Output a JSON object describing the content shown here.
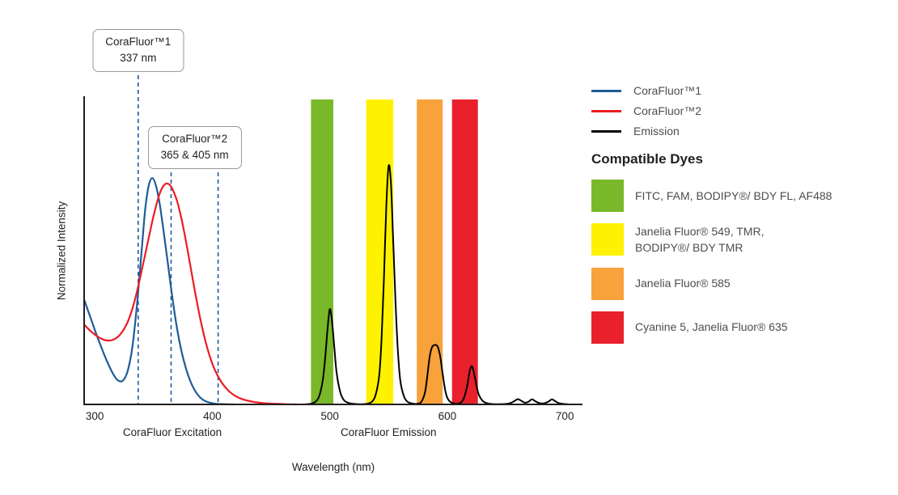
{
  "chart_data": {
    "type": "line",
    "title": "",
    "xlabel": "Wavelength (nm)",
    "ylabel": "Normalized Intensity",
    "xlim": [
      291,
      715
    ],
    "ylim": [
      0,
      1.28
    ],
    "x_ticks": [
      300,
      400,
      500,
      600,
      700
    ],
    "grid": false,
    "axis_group_labels": [
      {
        "text": "CoraFluor Excitation",
        "center_nm": 366
      },
      {
        "text": "CoraFluor Emission",
        "center_nm": 550
      }
    ],
    "annotations": [
      {
        "key": "corafluor1",
        "title": "CoraFluor™1",
        "value": "337 nm",
        "lines_nm": [
          337
        ]
      },
      {
        "key": "corafluor2",
        "title": "CoraFluor™2",
        "value": "365 & 405 nm",
        "lines_nm": [
          365,
          405
        ]
      }
    ],
    "dashed_line_color": "#1e5c97",
    "axis_color": "#231f20",
    "bands": [
      {
        "dye_key": "green",
        "color": "#79b829",
        "from_nm": 484,
        "to_nm": 503
      },
      {
        "dye_key": "yellow",
        "color": "#fff200",
        "from_nm": 531,
        "to_nm": 554
      },
      {
        "dye_key": "orange",
        "color": "#f7a23b",
        "from_nm": 574,
        "to_nm": 596
      },
      {
        "dye_key": "red",
        "color": "#e8212d",
        "from_nm": 604,
        "to_nm": 626
      }
    ],
    "series": [
      {
        "key": "corafluor1-excitation",
        "name": "CoraFluor™1",
        "color": "#1e5c97",
        "width": 2.2,
        "points": [
          [
            291,
            0.44
          ],
          [
            296,
            0.37
          ],
          [
            301,
            0.3
          ],
          [
            306,
            0.235
          ],
          [
            311,
            0.175
          ],
          [
            316,
            0.125
          ],
          [
            320,
            0.1
          ],
          [
            324,
            0.1
          ],
          [
            328,
            0.14
          ],
          [
            332,
            0.24
          ],
          [
            336,
            0.42
          ],
          [
            340,
            0.65
          ],
          [
            343,
            0.82
          ],
          [
            346,
            0.92
          ],
          [
            349,
            0.95
          ],
          [
            352,
            0.92
          ],
          [
            355,
            0.85
          ],
          [
            358,
            0.75
          ],
          [
            362,
            0.6
          ],
          [
            366,
            0.45
          ],
          [
            370,
            0.32
          ],
          [
            374,
            0.22
          ],
          [
            378,
            0.145
          ],
          [
            382,
            0.09
          ],
          [
            386,
            0.052
          ],
          [
            390,
            0.028
          ],
          [
            394,
            0.014
          ],
          [
            399,
            0.006
          ],
          [
            404,
            0.002
          ],
          [
            410,
            0.001
          ],
          [
            418,
            0
          ]
        ]
      },
      {
        "key": "corafluor2-excitation",
        "name": "CoraFluor™2",
        "color": "#ed1c24",
        "width": 2.2,
        "points": [
          [
            291,
            0.335
          ],
          [
            296,
            0.31
          ],
          [
            301,
            0.29
          ],
          [
            306,
            0.275
          ],
          [
            311,
            0.268
          ],
          [
            316,
            0.272
          ],
          [
            321,
            0.29
          ],
          [
            326,
            0.325
          ],
          [
            331,
            0.385
          ],
          [
            336,
            0.475
          ],
          [
            341,
            0.585
          ],
          [
            346,
            0.7
          ],
          [
            350,
            0.79
          ],
          [
            354,
            0.865
          ],
          [
            357,
            0.905
          ],
          [
            360,
            0.925
          ],
          [
            363,
            0.925
          ],
          [
            366,
            0.905
          ],
          [
            370,
            0.855
          ],
          [
            374,
            0.775
          ],
          [
            378,
            0.675
          ],
          [
            382,
            0.565
          ],
          [
            386,
            0.455
          ],
          [
            390,
            0.355
          ],
          [
            394,
            0.27
          ],
          [
            398,
            0.2
          ],
          [
            402,
            0.147
          ],
          [
            407,
            0.1
          ],
          [
            412,
            0.067
          ],
          [
            417,
            0.044
          ],
          [
            423,
            0.027
          ],
          [
            429,
            0.017
          ],
          [
            436,
            0.01
          ],
          [
            444,
            0.005
          ],
          [
            452,
            0.003
          ],
          [
            462,
            0.001
          ],
          [
            472,
            0
          ]
        ]
      },
      {
        "key": "emission",
        "name": "Emission",
        "color": "#000000",
        "width": 2,
        "points": [
          [
            462,
            0
          ],
          [
            478,
            0
          ],
          [
            484,
            0.003
          ],
          [
            488,
            0.012
          ],
          [
            491,
            0.035
          ],
          [
            494,
            0.1
          ],
          [
            496,
            0.19
          ],
          [
            498,
            0.31
          ],
          [
            500,
            0.4
          ],
          [
            502,
            0.345
          ],
          [
            504,
            0.23
          ],
          [
            506,
            0.125
          ],
          [
            509,
            0.05
          ],
          [
            512,
            0.018
          ],
          [
            516,
            0.006
          ],
          [
            521,
            0.002
          ],
          [
            527,
            0.001
          ],
          [
            532,
            0.003
          ],
          [
            536,
            0.012
          ],
          [
            539,
            0.04
          ],
          [
            542,
            0.12
          ],
          [
            544,
            0.27
          ],
          [
            546,
            0.52
          ],
          [
            548,
            0.82
          ],
          [
            550,
            1.0
          ],
          [
            552,
            0.93
          ],
          [
            554,
            0.68
          ],
          [
            556,
            0.42
          ],
          [
            558,
            0.22
          ],
          [
            560,
            0.1
          ],
          [
            563,
            0.035
          ],
          [
            566,
            0.012
          ],
          [
            570,
            0.004
          ],
          [
            575,
            0.003
          ],
          [
            578,
            0.012
          ],
          [
            581,
            0.05
          ],
          [
            583,
            0.12
          ],
          [
            585,
            0.2
          ],
          [
            587,
            0.24
          ],
          [
            590,
            0.25
          ],
          [
            592,
            0.24
          ],
          [
            594,
            0.2
          ],
          [
            596,
            0.13
          ],
          [
            598,
            0.065
          ],
          [
            600,
            0.028
          ],
          [
            603,
            0.009
          ],
          [
            607,
            0.003
          ],
          [
            611,
            0.006
          ],
          [
            614,
            0.025
          ],
          [
            617,
            0.08
          ],
          [
            619,
            0.14
          ],
          [
            621,
            0.16
          ],
          [
            623,
            0.125
          ],
          [
            625,
            0.075
          ],
          [
            627,
            0.038
          ],
          [
            630,
            0.015
          ],
          [
            633,
            0.006
          ],
          [
            637,
            0.002
          ],
          [
            643,
            0.001
          ],
          [
            650,
            0.002
          ],
          [
            654,
            0.006
          ],
          [
            657,
            0.014
          ],
          [
            660,
            0.022
          ],
          [
            663,
            0.015
          ],
          [
            666,
            0.007
          ],
          [
            669,
            0.011
          ],
          [
            672,
            0.021
          ],
          [
            675,
            0.013
          ],
          [
            678,
            0.006
          ],
          [
            682,
            0.004
          ],
          [
            686,
            0.012
          ],
          [
            689,
            0.021
          ],
          [
            692,
            0.013
          ],
          [
            695,
            0.005
          ],
          [
            699,
            0.002
          ],
          [
            704,
            0
          ]
        ]
      }
    ]
  },
  "legend": {
    "items": [
      {
        "label": "CoraFluor™1",
        "color": "#1e5c97"
      },
      {
        "label": "CoraFluor™2",
        "color": "#ed1c24"
      },
      {
        "label": "Emission",
        "color": "#000000"
      }
    ],
    "dyes_heading": "Compatible Dyes",
    "dyes": [
      {
        "color": "#79b829",
        "label": "FITC, FAM, BODIPY®/ BDY FL, AF488"
      },
      {
        "color": "#fff200",
        "label": "Janelia Fluor® 549, TMR,\nBODIPY®/ BDY TMR"
      },
      {
        "color": "#f7a23b",
        "label": "Janelia Fluor® 585"
      },
      {
        "color": "#e8212d",
        "label": "Cyanine 5, Janelia Fluor® 635"
      }
    ]
  }
}
